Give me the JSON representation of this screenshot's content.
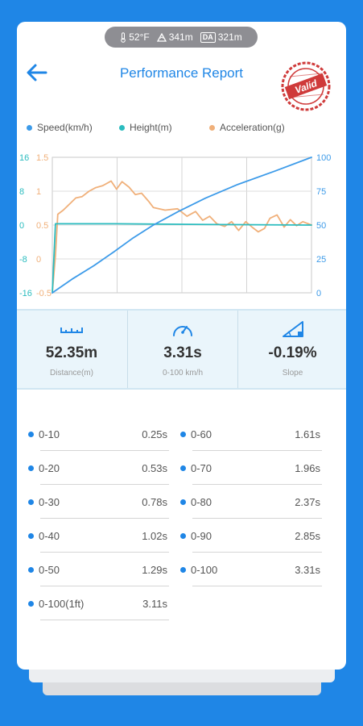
{
  "status_bar": {
    "temperature": "52°F",
    "altitude": "341m",
    "da_badge": "DA",
    "density_altitude": "321m"
  },
  "header": {
    "title": "Performance Report",
    "stamp_text": "Valid"
  },
  "legend": [
    {
      "name": "Speed(km/h)",
      "color": "#3d9be9"
    },
    {
      "name": "Height(m)",
      "color": "#2bbcbf"
    },
    {
      "name": "Acceleration(g)",
      "color": "#f0b07a"
    }
  ],
  "chart_data": {
    "type": "line",
    "axes": {
      "height_left": {
        "ticks": [
          "16",
          "8",
          "0",
          "-8",
          "-16"
        ],
        "range": [
          -16,
          16
        ],
        "color": "#2bbcbf"
      },
      "accel_left": {
        "ticks": [
          "1.5",
          "1",
          "0.5",
          "0",
          "-0.5"
        ],
        "range": [
          -0.5,
          1.5
        ],
        "color": "#f0b07a"
      },
      "speed_right": {
        "ticks": [
          "100",
          "75",
          "50",
          "25",
          "0"
        ],
        "range": [
          0,
          100
        ],
        "color": "#3d9be9"
      }
    },
    "x_range": [
      0,
      3.31
    ],
    "grid": true,
    "series": [
      {
        "name": "Speed(km/h)",
        "axis": "speed_right",
        "x": [
          0,
          0.25,
          0.53,
          0.78,
          1.02,
          1.29,
          1.61,
          1.96,
          2.37,
          2.85,
          3.31
        ],
        "y": [
          0,
          10,
          20,
          30,
          40,
          50,
          60,
          70,
          80,
          90,
          100
        ]
      },
      {
        "name": "Height(m)",
        "axis": "height_left",
        "x": [
          0,
          0.04,
          0.8,
          1.6,
          2.4,
          3.31
        ],
        "y": [
          -16,
          0.3,
          0.3,
          0.2,
          0.1,
          0.0
        ]
      },
      {
        "name": "Acceleration(g)",
        "axis": "accel_left",
        "x": [
          0,
          0.04,
          0.07,
          0.14,
          0.3,
          0.38,
          0.47,
          0.55,
          0.64,
          0.75,
          0.82,
          0.89,
          0.98,
          1.06,
          1.14,
          1.23,
          1.29,
          1.44,
          1.6,
          1.72,
          1.83,
          1.92,
          2.01,
          2.1,
          2.2,
          2.29,
          2.38,
          2.47,
          2.55,
          2.63,
          2.71,
          2.78,
          2.87,
          2.96,
          3.04,
          3.12,
          3.2,
          3.31
        ],
        "y": [
          -0.5,
          0.05,
          0.66,
          0.72,
          0.9,
          0.92,
          1.0,
          1.05,
          1.08,
          1.15,
          1.03,
          1.14,
          1.06,
          0.95,
          0.97,
          0.85,
          0.76,
          0.72,
          0.74,
          0.63,
          0.7,
          0.57,
          0.63,
          0.52,
          0.48,
          0.55,
          0.42,
          0.55,
          0.47,
          0.4,
          0.45,
          0.6,
          0.65,
          0.47,
          0.58,
          0.49,
          0.55,
          0.5
        ]
      }
    ]
  },
  "stats": [
    {
      "value": "52.35m",
      "label": "Distance(m)",
      "icon": "ruler-icon"
    },
    {
      "value": "3.31s",
      "label": "0-100 km/h",
      "icon": "speedometer-icon"
    },
    {
      "value": "-0.19%",
      "label": "Slope",
      "icon": "slope-icon"
    }
  ],
  "splits_left": [
    {
      "label": "0-10",
      "time": "0.25s"
    },
    {
      "label": "0-20",
      "time": "0.53s"
    },
    {
      "label": "0-30",
      "time": "0.78s"
    },
    {
      "label": "0-40",
      "time": "1.02s"
    },
    {
      "label": "0-50",
      "time": "1.29s"
    },
    {
      "label": "0-100(1ft)",
      "time": "3.11s"
    }
  ],
  "splits_right": [
    {
      "label": "0-60",
      "time": "1.61s"
    },
    {
      "label": "0-70",
      "time": "1.96s"
    },
    {
      "label": "0-80",
      "time": "2.37s"
    },
    {
      "label": "0-90",
      "time": "2.85s"
    },
    {
      "label": "0-100",
      "time": "3.31s"
    }
  ]
}
